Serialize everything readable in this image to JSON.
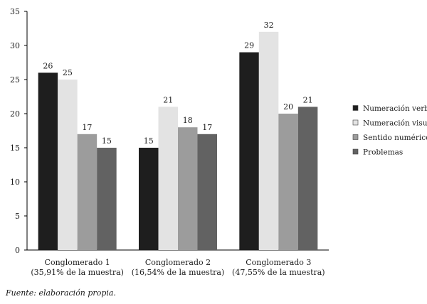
{
  "chart_data": {
    "type": "bar",
    "title": "",
    "xlabel": "",
    "ylabel": "",
    "ylim": [
      0,
      35
    ],
    "yticks": [
      0,
      5,
      10,
      15,
      20,
      25,
      30,
      35
    ],
    "grid": false,
    "legend_position": "right",
    "categories": [
      {
        "line1": "Conglomerado 1",
        "line2": "(35,91% de la muestra)"
      },
      {
        "line1": "Conglomerado 2",
        "line2": "(16,54% de la muestra)"
      },
      {
        "line1": "Conglomerado 3",
        "line2": "(47,55% de la muestra)"
      }
    ],
    "series": [
      {
        "name": "Numeración verbal",
        "color": "#1e1e1e",
        "values": [
          26,
          15,
          29
        ]
      },
      {
        "name": "Numeración visual",
        "color": "#e3e3e3",
        "values": [
          25,
          21,
          32
        ]
      },
      {
        "name": "Sentido numérico",
        "color": "#9c9c9c",
        "values": [
          17,
          18,
          20
        ]
      },
      {
        "name": "Problemas",
        "color": "#626262",
        "values": [
          15,
          17,
          21
        ]
      }
    ]
  },
  "source": "Fuente: elaboración propia."
}
